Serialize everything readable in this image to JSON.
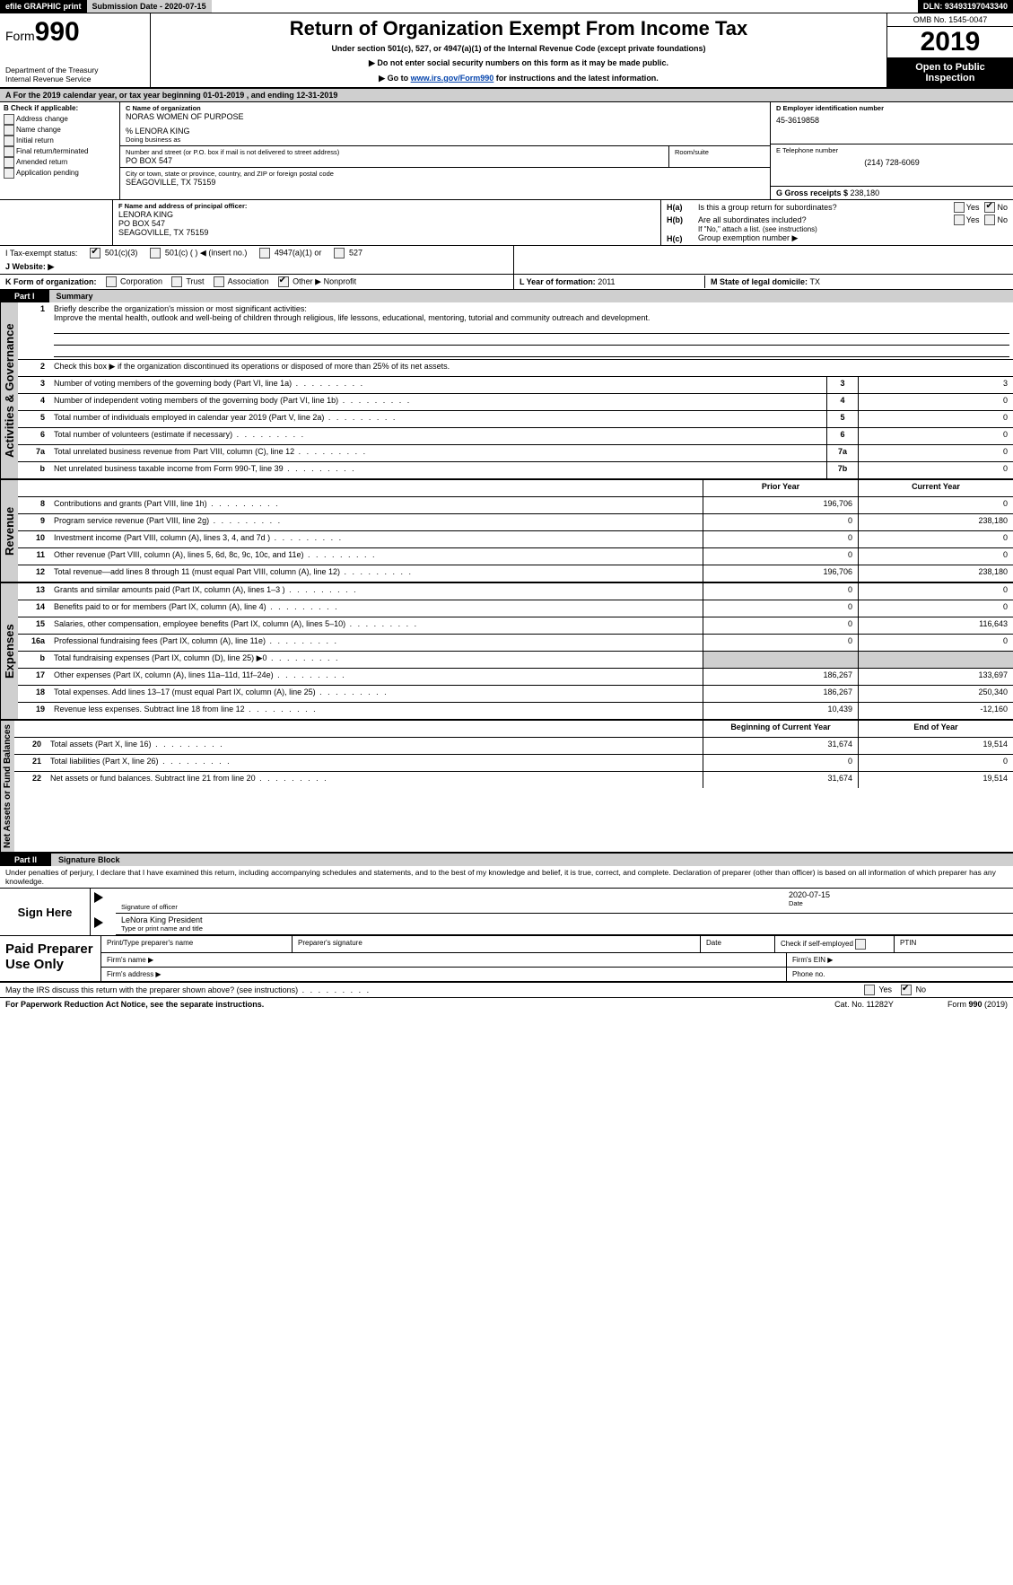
{
  "topbar": {
    "efile": "efile GRAPHIC print",
    "submission_label": "Submission Date - ",
    "submission_date": "2020-07-15",
    "dln_label": "DLN: ",
    "dln": "93493197043340"
  },
  "header": {
    "form_label": "Form",
    "form_num": "990",
    "dept1": "Department of the Treasury",
    "dept2": "Internal Revenue Service",
    "title": "Return of Organization Exempt From Income Tax",
    "sub1": "Under section 501(c), 527, or 4947(a)(1) of the Internal Revenue Code (except private foundations)",
    "sub2": "▶ Do not enter social security numbers on this form as it may be made public.",
    "sub3_pre": "▶ Go to ",
    "sub3_link": "www.irs.gov/Form990",
    "sub3_post": " for instructions and the latest information.",
    "omb": "OMB No. 1545-0047",
    "year": "2019",
    "open": "Open to Public Inspection"
  },
  "rowA": {
    "text_pre": "A   For the 2019 calendar year, or tax year beginning ",
    "begin": "01-01-2019",
    "mid": "    , and ending ",
    "end": "12-31-2019"
  },
  "B": {
    "heading": "B Check if applicable:",
    "items": [
      "Address change",
      "Name change",
      "Initial return",
      "Final return/terminated",
      "Amended return",
      "Application pending"
    ]
  },
  "C": {
    "name_label": "C Name of organization",
    "name": "NORAS WOMEN OF PURPOSE",
    "care_of": "% LENORA KING",
    "dba_label": "Doing business as",
    "street_label": "Number and street (or P.O. box if mail is not delivered to street address)",
    "room_label": "Room/suite",
    "street": "PO BOX 547",
    "city_label": "City or town, state or province, country, and ZIP or foreign postal code",
    "city": "SEAGOVILLE, TX  75159"
  },
  "D": {
    "label": "D Employer identification number",
    "val": "45-3619858"
  },
  "E": {
    "label": "E Telephone number",
    "val": "(214) 728-6069"
  },
  "G": {
    "label": "G Gross receipts $ ",
    "val": "238,180"
  },
  "F": {
    "label": "F  Name and address of principal officer:",
    "name": "LENORA KING",
    "street": "PO BOX 547",
    "city": "SEAGOVILLE, TX  75159"
  },
  "H": {
    "a_label": "H(a)",
    "a_text": "Is this a group return for subordinates?",
    "b_label": "H(b)",
    "b_text": "Are all subordinates included?",
    "b_note": "If \"No,\" attach a list. (see instructions)",
    "c_label": "H(c)",
    "c_text": "Group exemption number ▶",
    "yes": "Yes",
    "no": "No"
  },
  "I": {
    "label": "I      Tax-exempt status:",
    "opts": [
      "501(c)(3)",
      "501(c) (  ) ◀ (insert no.)",
      "4947(a)(1) or",
      "527"
    ]
  },
  "J": {
    "label": "J    Website: ▶"
  },
  "K": {
    "label": "K Form of organization:",
    "opts": [
      "Corporation",
      "Trust",
      "Association",
      "Other ▶"
    ],
    "other_val": "Nonprofit"
  },
  "L": {
    "label": "L Year of formation: ",
    "val": "2011"
  },
  "M": {
    "label": "M State of legal domicile: ",
    "val": "TX"
  },
  "parts": {
    "p1": "Part I",
    "p1_title": "Summary",
    "p2": "Part II",
    "p2_title": "Signature Block"
  },
  "sidebars": {
    "s1": "Activities & Governance",
    "s2": "Revenue",
    "s3": "Expenses",
    "s4": "Net Assets or Fund Balances"
  },
  "summary": {
    "line1_pre": "Briefly describe the organization's mission or most significant activities:",
    "mission": "Improve the mental health, outlook and well-being of children through religious, life lessons, educational, mentoring, tutorial and community outreach and development.",
    "line2": "Check this box ▶        if the organization discontinued its operations or disposed of more than 25% of its net assets.",
    "rows_ag": [
      {
        "n": "3",
        "t": "Number of voting members of the governing body (Part VI, line 1a)",
        "box": "3",
        "v": "3"
      },
      {
        "n": "4",
        "t": "Number of independent voting members of the governing body (Part VI, line 1b)",
        "box": "4",
        "v": "0"
      },
      {
        "n": "5",
        "t": "Total number of individuals employed in calendar year 2019 (Part V, line 2a)",
        "box": "5",
        "v": "0"
      },
      {
        "n": "6",
        "t": "Total number of volunteers (estimate if necessary)",
        "box": "6",
        "v": "0"
      },
      {
        "n": "7a",
        "t": "Total unrelated business revenue from Part VIII, column (C), line 12",
        "box": "7a",
        "v": "0"
      },
      {
        "n": "b",
        "t": "Net unrelated business taxable income from Form 990-T, line 39",
        "box": "7b",
        "v": "0"
      }
    ],
    "col_prior": "Prior Year",
    "col_current": "Current Year",
    "rows_rev": [
      {
        "n": "8",
        "t": "Contributions and grants (Part VIII, line 1h)",
        "p": "196,706",
        "c": "0"
      },
      {
        "n": "9",
        "t": "Program service revenue (Part VIII, line 2g)",
        "p": "0",
        "c": "238,180"
      },
      {
        "n": "10",
        "t": "Investment income (Part VIII, column (A), lines 3, 4, and 7d )",
        "p": "0",
        "c": "0"
      },
      {
        "n": "11",
        "t": "Other revenue (Part VIII, column (A), lines 5, 6d, 8c, 9c, 10c, and 11e)",
        "p": "0",
        "c": "0"
      },
      {
        "n": "12",
        "t": "Total revenue—add lines 8 through 11 (must equal Part VIII, column (A), line 12)",
        "p": "196,706",
        "c": "238,180"
      }
    ],
    "rows_exp": [
      {
        "n": "13",
        "t": "Grants and similar amounts paid (Part IX, column (A), lines 1–3 )",
        "p": "0",
        "c": "0"
      },
      {
        "n": "14",
        "t": "Benefits paid to or for members (Part IX, column (A), line 4)",
        "p": "0",
        "c": "0"
      },
      {
        "n": "15",
        "t": "Salaries, other compensation, employee benefits (Part IX, column (A), lines 5–10)",
        "p": "0",
        "c": "116,643"
      },
      {
        "n": "16a",
        "t": "Professional fundraising fees (Part IX, column (A), line 11e)",
        "p": "0",
        "c": "0"
      },
      {
        "n": "b",
        "t": "Total fundraising expenses (Part IX, column (D), line 25)  ▶0",
        "p": "GRAY",
        "c": "GRAY"
      },
      {
        "n": "17",
        "t": "Other expenses (Part IX, column (A), lines 11a–11d, 11f–24e)",
        "p": "186,267",
        "c": "133,697"
      },
      {
        "n": "18",
        "t": "Total expenses. Add lines 13–17 (must equal Part IX, column (A), line 25)",
        "p": "186,267",
        "c": "250,340"
      },
      {
        "n": "19",
        "t": "Revenue less expenses. Subtract line 18 from line 12",
        "p": "10,439",
        "c": "-12,160"
      }
    ],
    "col_begin": "Beginning of Current Year",
    "col_end": "End of Year",
    "rows_net": [
      {
        "n": "20",
        "t": "Total assets (Part X, line 16)",
        "p": "31,674",
        "c": "19,514"
      },
      {
        "n": "21",
        "t": "Total liabilities (Part X, line 26)",
        "p": "0",
        "c": "0"
      },
      {
        "n": "22",
        "t": "Net assets or fund balances. Subtract line 21 from line 20",
        "p": "31,674",
        "c": "19,514"
      }
    ]
  },
  "sig": {
    "penalties": "Under penalties of perjury, I declare that I have examined this return, including accompanying schedules and statements, and to the best of my knowledge and belief, it is true, correct, and complete. Declaration of preparer (other than officer) is based on all information of which preparer has any knowledge.",
    "sign_here": "Sign Here",
    "sig_officer": "Signature of officer",
    "date_label": "Date",
    "date_val": "2020-07-15",
    "name_title": "LeNora King  President",
    "name_title_label": "Type or print name and title",
    "paid": "Paid Preparer Use Only",
    "pt_name": "Print/Type preparer's name",
    "pt_sig": "Preparer's signature",
    "pt_date": "Date",
    "pt_check": "Check         if self-employed",
    "pt_ptin": "PTIN",
    "firm_name": "Firm's name   ▶",
    "firm_ein": "Firm's EIN ▶",
    "firm_addr": "Firm's address ▶",
    "phone": "Phone no.",
    "discuss": "May the IRS discuss this return with the preparer shown above? (see instructions)",
    "yes": "Yes",
    "no": "No"
  },
  "footer": {
    "left": "For Paperwork Reduction Act Notice, see the separate instructions.",
    "mid": "Cat. No. 11282Y",
    "right": "Form 990 (2019)"
  }
}
